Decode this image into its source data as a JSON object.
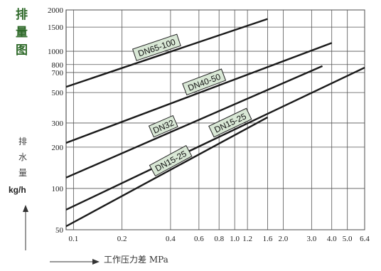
{
  "chart_data": {
    "type": "line",
    "title_chars": [
      "排",
      "量",
      "图"
    ],
    "ylabel_chars": [
      "排",
      "水",
      "量"
    ],
    "yunit": "kg/h",
    "xlabel": "工作压力差 MPa",
    "x_scale": "log",
    "y_scale": "log",
    "xlim": [
      0.09,
      6.4
    ],
    "ylim": [
      50,
      2000
    ],
    "xticks": [
      {
        "value": 0.1,
        "label": "0.1"
      },
      {
        "value": 0.2,
        "label": "0.2"
      },
      {
        "value": 0.4,
        "label": "0.4"
      },
      {
        "value": 0.6,
        "label": "0.6"
      },
      {
        "value": 0.8,
        "label": "0.8"
      },
      {
        "value": 1.0,
        "label": "1.0"
      },
      {
        "value": 1.2,
        "label": "1.2"
      },
      {
        "value": 1.6,
        "label": "1.6"
      },
      {
        "value": 2.0,
        "label": "2.0"
      },
      {
        "value": 3.0,
        "label": "3.0"
      },
      {
        "value": 4.0,
        "label": "4.0"
      },
      {
        "value": 5.0,
        "label": "5.0"
      },
      {
        "value": 6.4,
        "label": "6.4"
      }
    ],
    "yticks": [
      {
        "value": 50,
        "label": "50"
      },
      {
        "value": 100,
        "label": "100"
      },
      {
        "value": 200,
        "label": "200"
      },
      {
        "value": 300,
        "label": "300"
      },
      {
        "value": 500,
        "label": "500"
      },
      {
        "value": 700,
        "label": "700"
      },
      {
        "value": 800,
        "label": "800"
      },
      {
        "value": 1000,
        "label": "1000"
      },
      {
        "value": 1500,
        "label": "1500"
      },
      {
        "value": 2000,
        "label": "2000"
      }
    ],
    "grid": true,
    "series": [
      {
        "name": "DN65-100",
        "x": [
          0.09,
          1.6
        ],
        "y": [
          550,
          1720
        ]
      },
      {
        "name": "DN40-50",
        "x": [
          0.09,
          4.0
        ],
        "y": [
          215,
          1150
        ]
      },
      {
        "name": "DN32",
        "x": [
          0.09,
          3.5
        ],
        "y": [
          120,
          780
        ]
      },
      {
        "name": "DN15-25",
        "x": [
          0.09,
          6.4
        ],
        "y": [
          70,
          760
        ]
      },
      {
        "name": "DN15-25",
        "x": [
          0.09,
          1.6
        ],
        "y": [
          53,
          330
        ]
      }
    ]
  }
}
